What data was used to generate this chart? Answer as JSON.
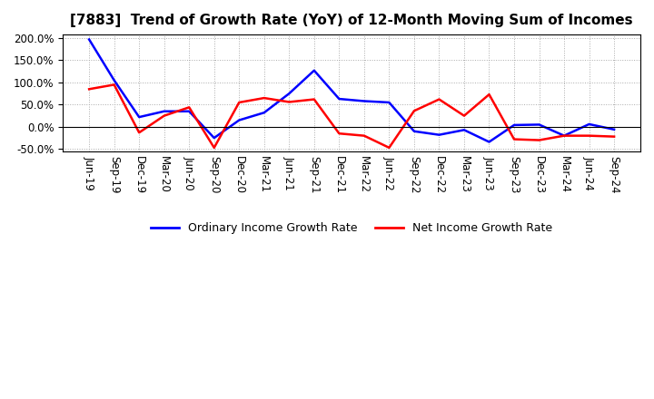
{
  "title": "[7883]  Trend of Growth Rate (YoY) of 12-Month Moving Sum of Incomes",
  "x_labels": [
    "Jun-19",
    "Sep-19",
    "Dec-19",
    "Mar-20",
    "Jun-20",
    "Sep-20",
    "Dec-20",
    "Mar-21",
    "Jun-21",
    "Sep-21",
    "Dec-21",
    "Mar-22",
    "Jun-22",
    "Sep-22",
    "Dec-22",
    "Mar-23",
    "Jun-23",
    "Sep-23",
    "Dec-23",
    "Mar-24",
    "Jun-24",
    "Sep-24"
  ],
  "ordinary_income": [
    1.97,
    1.05,
    0.22,
    0.35,
    0.35,
    -0.25,
    0.15,
    0.32,
    0.75,
    1.27,
    0.63,
    0.58,
    0.55,
    -0.1,
    -0.18,
    -0.07,
    -0.34,
    0.04,
    0.05,
    -0.2,
    0.06,
    -0.06
  ],
  "net_income": [
    0.85,
    0.95,
    -0.13,
    0.25,
    0.44,
    -0.47,
    0.55,
    0.65,
    0.56,
    0.62,
    -0.15,
    -0.2,
    -0.47,
    0.36,
    0.62,
    0.25,
    0.73,
    -0.28,
    -0.3,
    -0.2,
    -0.2,
    -0.22
  ],
  "ylim_min": -0.55,
  "ylim_max": 2.08,
  "yticks": [
    -0.5,
    0.0,
    0.5,
    1.0,
    1.5,
    2.0
  ],
  "ordinary_color": "#0000FF",
  "net_color": "#FF0000",
  "legend_ordinary": "Ordinary Income Growth Rate",
  "legend_net": "Net Income Growth Rate",
  "background_color": "#FFFFFF",
  "grid_color": "#AAAAAA",
  "title_fontsize": 11,
  "tick_fontsize": 8.5,
  "legend_fontsize": 9
}
